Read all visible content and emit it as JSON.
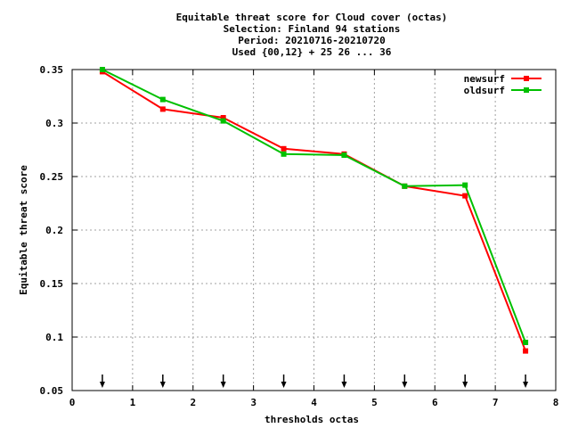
{
  "chart_data": {
    "type": "line",
    "title_lines": [
      "Equitable threat score  for Cloud cover (octas)",
      "Selection: Finland     94 stations",
      "Period: 20210716-20210720",
      "Used {00,12} + 25 26 ... 36"
    ],
    "xlabel": "thresholds octas",
    "ylabel": "Equitable threat score",
    "xlim": [
      0,
      8
    ],
    "ylim": [
      0.05,
      0.35
    ],
    "xticks": [
      "0",
      "1",
      "2",
      "3",
      "4",
      "5",
      "6",
      "7",
      "8"
    ],
    "yticks": [
      "0.05",
      "0.1",
      "0.15",
      "0.2",
      "0.25",
      "0.3",
      "0.35"
    ],
    "grid": true,
    "legend_position": "top-right",
    "x": [
      0.5,
      1.5,
      2.5,
      3.5,
      4.5,
      5.5,
      6.5,
      7.5
    ],
    "arrow_markers_x": [
      0.5,
      1.5,
      2.5,
      3.5,
      4.5,
      5.5,
      6.5,
      7.5
    ],
    "series": [
      {
        "name": "newsurf",
        "color": "#ff0000",
        "values": [
          0.348,
          0.313,
          0.305,
          0.276,
          0.271,
          0.241,
          0.232,
          0.087
        ]
      },
      {
        "name": "oldsurf",
        "color": "#00c000",
        "values": [
          0.35,
          0.322,
          0.302,
          0.271,
          0.27,
          0.241,
          0.242,
          0.095
        ]
      }
    ]
  }
}
